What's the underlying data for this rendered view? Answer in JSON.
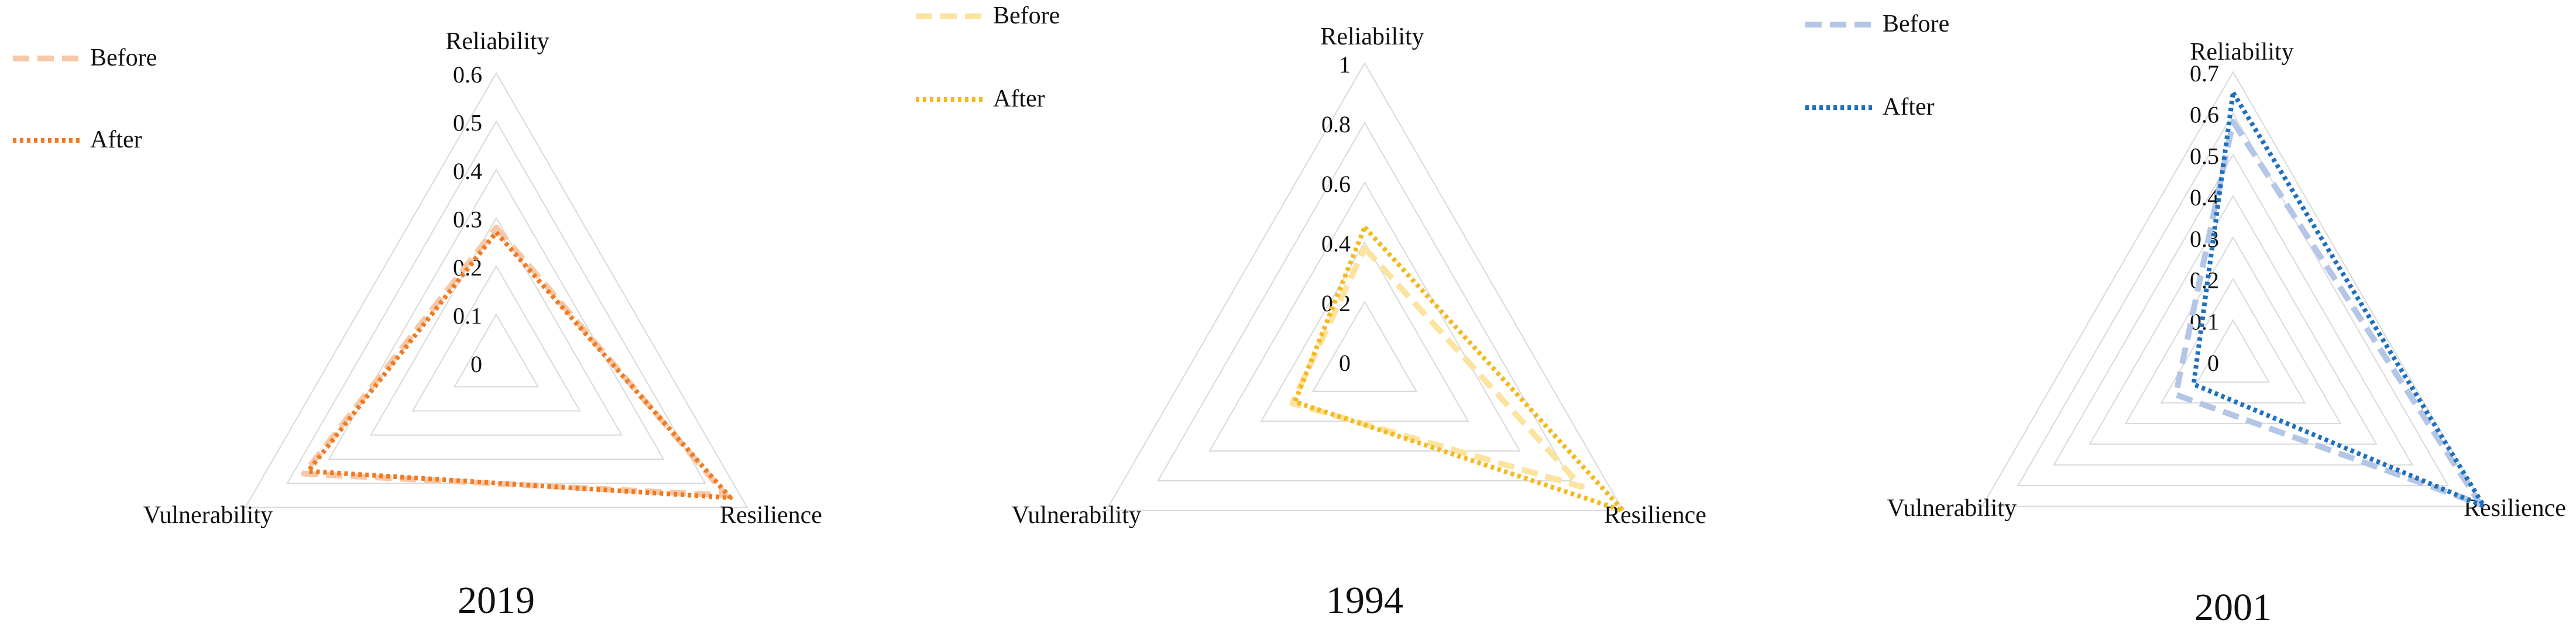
{
  "chart_data": [
    {
      "type": "radar",
      "title": "2019",
      "axes": [
        "Reliability",
        "Resilience",
        "Vulnerability"
      ],
      "ticks": [
        "0",
        "0.1",
        "0.2",
        "0.3",
        "0.4",
        "0.5",
        "0.6"
      ],
      "rmax": 0.6,
      "series": [
        {
          "name": "Before",
          "values": [
            0.28,
            0.55,
            0.46
          ],
          "color": "#f7c8a8",
          "style": "dashed"
        },
        {
          "name": "After",
          "values": [
            0.27,
            0.56,
            0.45
          ],
          "color": "#f07a22",
          "style": "dotted"
        }
      ]
    },
    {
      "type": "radar",
      "title": "1994",
      "axes": [
        "Reliability",
        "Resilience",
        "Vulnerability"
      ],
      "ticks": [
        "0",
        "0.2",
        "0.4",
        "0.6",
        "0.8",
        "1"
      ],
      "rmax": 1,
      "series": [
        {
          "name": "Before",
          "values": [
            0.38,
            0.84,
            0.28
          ],
          "color": "#fde3a0",
          "style": "dashed"
        },
        {
          "name": "After",
          "values": [
            0.45,
            1.0,
            0.27
          ],
          "color": "#f4b91c",
          "style": "dotted"
        }
      ]
    },
    {
      "type": "radar",
      "title": "2001",
      "axes": [
        "Reliability",
        "Resilience",
        "Vulnerability"
      ],
      "ticks": [
        "0",
        "0.1",
        "0.2",
        "0.3",
        "0.4",
        "0.5",
        "0.6",
        "0.7"
      ],
      "rmax": 0.7,
      "series": [
        {
          "name": "Before",
          "values": [
            0.58,
            0.69,
            0.16
          ],
          "color": "#b3c6e6",
          "style": "dashed"
        },
        {
          "name": "After",
          "values": [
            0.65,
            0.7,
            0.11
          ],
          "color": "#1f70bf",
          "style": "dotted"
        }
      ]
    }
  ]
}
